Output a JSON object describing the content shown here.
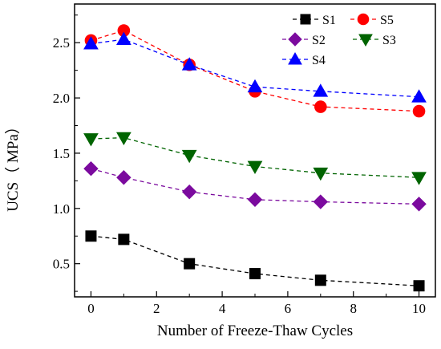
{
  "chart_data": {
    "type": "line",
    "xlabel": "Number of Freeze-Thaw Cycles",
    "ylabel": "UCS（ MPa）",
    "xlim": [
      -0.5,
      10.5
    ],
    "ylim": [
      0.2,
      2.85
    ],
    "xticks": [
      0,
      2,
      4,
      6,
      8,
      10
    ],
    "yticks": [
      0.5,
      1.0,
      1.5,
      2.0,
      2.5
    ],
    "xtick_labels": [
      "0",
      "2",
      "4",
      "6",
      "8",
      "10"
    ],
    "ytick_labels": [
      "0.5",
      "1.0",
      "1.5",
      "2.0",
      "2.5"
    ],
    "grid": false,
    "legend_placement": "top-right",
    "x": [
      0,
      1,
      3,
      5,
      7,
      10
    ],
    "series": [
      {
        "name": "S1",
        "marker": "square",
        "color": "#000000",
        "values": [
          0.75,
          0.72,
          0.5,
          0.41,
          0.35,
          0.3
        ]
      },
      {
        "name": "S5",
        "marker": "circle",
        "color": "#ff0000",
        "values": [
          2.52,
          2.61,
          2.3,
          2.06,
          1.92,
          1.88
        ]
      },
      {
        "name": "S2",
        "marker": "diamond",
        "color": "#7b0a9e",
        "values": [
          1.36,
          1.28,
          1.15,
          1.08,
          1.06,
          1.04
        ]
      },
      {
        "name": "S3",
        "marker": "triangle-down",
        "color": "#006400",
        "values": [
          1.63,
          1.64,
          1.48,
          1.38,
          1.32,
          1.28
        ]
      },
      {
        "name": "S4",
        "marker": "triangle-up",
        "color": "#0000ff",
        "values": [
          2.49,
          2.53,
          2.3,
          2.1,
          2.06,
          2.01
        ]
      }
    ]
  }
}
